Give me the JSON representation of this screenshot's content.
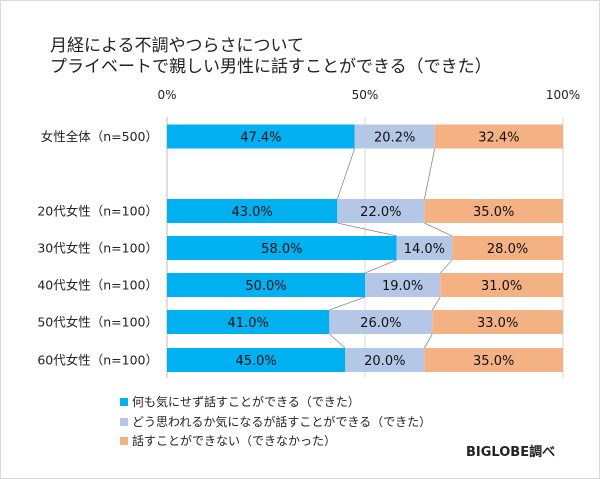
{
  "chart_data": {
    "type": "bar",
    "orientation": "horizontal",
    "stacked": "percent",
    "title_lines": [
      "月経による不調やつらさについて",
      "プライベートで親しい男性に話すことができる（できた）"
    ],
    "categories": [
      "女性全体（n=500）",
      "20代女性（n=100）",
      "30代女性（n=100）",
      "40代女性（n=100）",
      "50代女性（n=100）",
      "60代女性（n=100）"
    ],
    "series": [
      {
        "name": "何も気にせず話すことができる（できた）",
        "color": "#00B0F0",
        "values": [
          47.4,
          43.0,
          58.0,
          50.0,
          41.0,
          45.0
        ]
      },
      {
        "name": "どう思われるか気になるが話すことができる（できた）",
        "color": "#B4C7E7",
        "values": [
          20.2,
          22.0,
          14.0,
          19.0,
          26.0,
          20.0
        ]
      },
      {
        "name": "話すことができない（できなかった）",
        "color": "#F4B183",
        "values": [
          32.4,
          35.0,
          28.0,
          31.0,
          33.0,
          35.0
        ]
      }
    ],
    "data_labels": [
      [
        "47.4%",
        "20.2%",
        "32.4%"
      ],
      [
        "43.0%",
        "22.0%",
        "35.0%"
      ],
      [
        "58.0%",
        "14.0%",
        "28.0%"
      ],
      [
        "50.0%",
        "19.0%",
        "31.0%"
      ],
      [
        "41.0%",
        "26.0%",
        "33.0%"
      ],
      [
        "45.0%",
        "20.0%",
        "35.0%"
      ]
    ],
    "xlim": [
      0,
      100
    ],
    "x_ticks": [
      "0%",
      "50%",
      "100%"
    ],
    "x_tick_values": [
      0,
      50,
      100
    ],
    "grid": true,
    "series_lines": true,
    "legend_position": "bottom-left",
    "source": "BIGLOBE調べ"
  }
}
